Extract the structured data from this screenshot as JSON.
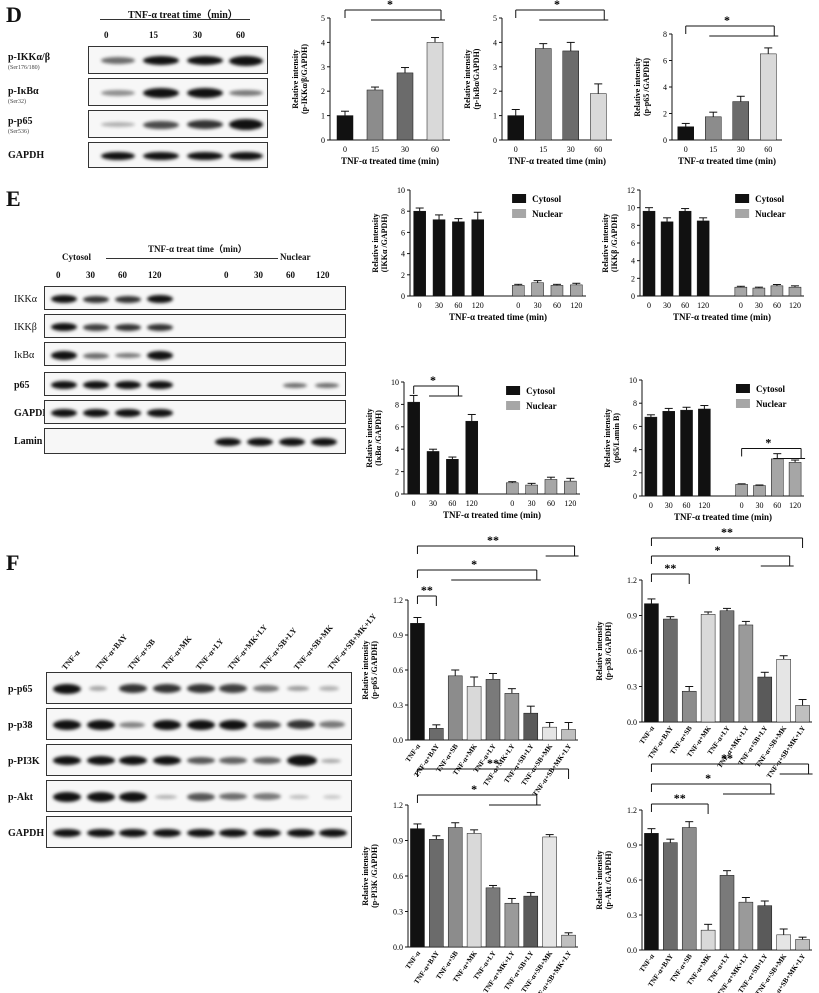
{
  "panels": {
    "D": "D",
    "E": "E",
    "F": "F"
  },
  "D": {
    "treat_header": "TNF-α treat time（min）",
    "times": [
      "0",
      "15",
      "30",
      "60"
    ],
    "blot_labels": [
      {
        "name": "p-IKKα/β",
        "sub": "(Ser176/180)"
      },
      {
        "name": "p-IκBα",
        "sub": "(Ser32)"
      },
      {
        "name": "p-p65",
        "sub": "(Ser536)"
      },
      {
        "name": "GAPDH",
        "sub": ""
      }
    ]
  },
  "E": {
    "treat_header": "TNF-α treat time（min）",
    "cytosol": "Cytosol",
    "nuclear": "Nuclear",
    "times": [
      "0",
      "30",
      "60",
      "120",
      "0",
      "30",
      "60",
      "120"
    ],
    "blot_labels": [
      "IKKα",
      "IKKβ",
      "IκBα",
      "p65",
      "GAPDH",
      "Lamin B"
    ]
  },
  "F": {
    "lanes": [
      "TNF-α",
      "TNF-α+BAY",
      "TNF-α+SB",
      "TNF-α+MK",
      "TNF-α+LY",
      "TNF-α+MK+LY",
      "TNF-α+SB+LY",
      "TNF-α+SB+MK",
      "TNF-α+SB+MK+LY"
    ],
    "blot_labels": [
      "p-p65",
      "p-p38",
      "p-PI3K",
      "p-Akt",
      "GAPDH"
    ]
  },
  "chart_data": [
    {
      "type": "bar",
      "id": "D1",
      "categories": [
        "0",
        "15",
        "30",
        "60"
      ],
      "values": [
        1.0,
        2.05,
        2.75,
        4.0
      ],
      "errors": [
        0.18,
        0.12,
        0.22,
        0.2
      ],
      "colors": [
        "#111111",
        "#8c8c8c",
        "#6b6b6b",
        "#d9d9d9"
      ],
      "ylim": [
        0,
        5
      ],
      "yticks": [
        "0",
        "1",
        "2",
        "3",
        "4",
        "5"
      ],
      "ylabel": "Relative intensity",
      "ylabel2": "(p-IKKα/β/GAPDH)",
      "xlabel": "TNF-α treated time (min)",
      "sig": "*"
    },
    {
      "type": "bar",
      "id": "D2",
      "categories": [
        "0",
        "15",
        "30",
        "60"
      ],
      "values": [
        1.0,
        3.75,
        3.65,
        1.9
      ],
      "errors": [
        0.25,
        0.2,
        0.35,
        0.4
      ],
      "colors": [
        "#111111",
        "#8c8c8c",
        "#6b6b6b",
        "#d9d9d9"
      ],
      "ylim": [
        0,
        5
      ],
      "yticks": [
        "0",
        "1",
        "2",
        "3",
        "4",
        "5"
      ],
      "ylabel": "Relative intensity",
      "ylabel2": "(p-IκBα/GAPDH)",
      "xlabel": "TNF-α treated time (min)",
      "sig": "*"
    },
    {
      "type": "bar",
      "id": "D3",
      "categories": [
        "0",
        "15",
        "30",
        "60"
      ],
      "values": [
        1.0,
        1.75,
        2.9,
        6.5
      ],
      "errors": [
        0.25,
        0.35,
        0.4,
        0.45
      ],
      "colors": [
        "#111111",
        "#8c8c8c",
        "#6b6b6b",
        "#d9d9d9"
      ],
      "ylim": [
        0,
        8
      ],
      "yticks": [
        "0",
        "2",
        "4",
        "6",
        "8"
      ],
      "ylabel": "Relative intensity",
      "ylabel2": "(p-p65 /GAPDH)",
      "xlabel": "TNF-α treated time (min)",
      "sig": "*"
    },
    {
      "type": "bar",
      "id": "E1",
      "categories": [
        "0",
        "30",
        "60",
        "120",
        "0",
        "30",
        "60",
        "120"
      ],
      "values": [
        8.0,
        7.2,
        7.0,
        7.2,
        1.0,
        1.25,
        1.0,
        1.05
      ],
      "errors": [
        0.3,
        0.45,
        0.3,
        0.7,
        0.1,
        0.2,
        0.1,
        0.15
      ],
      "groups": [
        "Cytosol",
        "Nuclear"
      ],
      "ylim": [
        0,
        10
      ],
      "yticks": [
        "0",
        "2",
        "4",
        "6",
        "8",
        "10"
      ],
      "ylabel": "Relative intensity",
      "ylabel2": "(IKKα /GAPDH)",
      "xlabel": "TNF-α treated time (min)",
      "legend": [
        "Cytosol",
        "Nuclear"
      ]
    },
    {
      "type": "bar",
      "id": "E2",
      "categories": [
        "0",
        "30",
        "60",
        "120",
        "0",
        "30",
        "60",
        "120"
      ],
      "values": [
        9.6,
        8.4,
        9.6,
        8.5,
        1.0,
        0.9,
        1.15,
        1.0
      ],
      "errors": [
        0.4,
        0.45,
        0.3,
        0.35,
        0.1,
        0.1,
        0.15,
        0.15
      ],
      "groups": [
        "Cytosol",
        "Nuclear"
      ],
      "ylim": [
        0,
        12
      ],
      "yticks": [
        "0",
        "2",
        "4",
        "6",
        "8",
        "10",
        "12"
      ],
      "ylabel": "Relative intensity",
      "ylabel2": "(IKKβ /GAPDH)",
      "xlabel": "TNF-α treated time (min)",
      "legend": [
        "Cytosol",
        "Nuclear"
      ]
    },
    {
      "type": "bar",
      "id": "E3",
      "categories": [
        "0",
        "30",
        "60",
        "120",
        "0",
        "30",
        "60",
        "120"
      ],
      "values": [
        8.2,
        3.8,
        3.1,
        6.5,
        1.0,
        0.8,
        1.3,
        1.15
      ],
      "errors": [
        0.6,
        0.2,
        0.2,
        0.6,
        0.1,
        0.15,
        0.2,
        0.25
      ],
      "groups": [
        "Cytosol",
        "Nuclear"
      ],
      "ylim": [
        0,
        10
      ],
      "yticks": [
        "0",
        "2",
        "4",
        "6",
        "8",
        "10"
      ],
      "ylabel": "Relative intensity",
      "ylabel2": "(IκBα /GAPDH)",
      "xlabel": "TNF-α treated time (min)",
      "legend": [
        "Cytosol",
        "Nuclear"
      ],
      "sig": "*"
    },
    {
      "type": "bar",
      "id": "E4",
      "categories": [
        "0",
        "30",
        "60",
        "120",
        "0",
        "30",
        "60",
        "120"
      ],
      "values": [
        6.8,
        7.3,
        7.4,
        7.5,
        1.0,
        0.9,
        3.2,
        2.9
      ],
      "errors": [
        0.2,
        0.25,
        0.25,
        0.3,
        0.05,
        0.05,
        0.45,
        0.2
      ],
      "groups": [
        "Cytosol",
        "Nuclear"
      ],
      "ylim": [
        0,
        10
      ],
      "yticks": [
        "0",
        "2",
        "4",
        "6",
        "8",
        "10"
      ],
      "ylabel": "Relative intensity",
      "ylabel2": "(p65/Lamin B)",
      "xlabel": "TNF-α treated time (min)",
      "legend": [
        "Cytosol",
        "Nuclear"
      ],
      "sig": "*"
    },
    {
      "type": "bar",
      "id": "F1",
      "categories": [
        "TNF-α",
        "TNF-α+BAY",
        "TNF-α+SB",
        "TNF-α+MK",
        "TNF-α+LY",
        "TNF-α+MK+LY",
        "TNF-α+SB+LY",
        "TNF-α+SB+MK",
        "TNF-α+SB+MK+LY"
      ],
      "values": [
        1.0,
        0.1,
        0.55,
        0.46,
        0.52,
        0.4,
        0.23,
        0.11,
        0.09
      ],
      "errors": [
        0.05,
        0.03,
        0.05,
        0.08,
        0.05,
        0.04,
        0.06,
        0.04,
        0.06
      ],
      "colors": [
        "#111111",
        "#6b6b6b",
        "#8c8c8c",
        "#d9d9d9",
        "#7a7a7a",
        "#9a9a9a",
        "#5a5a5a",
        "#e5e5e5",
        "#bfbfbf"
      ],
      "ylim": [
        0,
        1.2
      ],
      "yticks": [
        "0.0",
        "0.3",
        "0.6",
        "0.9",
        "1.2"
      ],
      "ylabel": "Relative intensity",
      "ylabel2": "(p-p65 /GAPDH)",
      "sig": [
        "**",
        "*",
        "**"
      ]
    },
    {
      "type": "bar",
      "id": "F2",
      "categories": [
        "TNF-α",
        "TNF-α+BAY",
        "TNF-α+SB",
        "TNF-α+MK",
        "TNF-α+LY",
        "TNF-α+MK+LY",
        "TNF-α+SB+LY",
        "TNF-α+SB+MK",
        "TNF-α+SB+MK+LY"
      ],
      "values": [
        1.0,
        0.87,
        0.26,
        0.91,
        0.94,
        0.82,
        0.38,
        0.53,
        0.14
      ],
      "errors": [
        0.04,
        0.02,
        0.04,
        0.02,
        0.02,
        0.03,
        0.04,
        0.03,
        0.05
      ],
      "colors": [
        "#111111",
        "#6b6b6b",
        "#8c8c8c",
        "#d9d9d9",
        "#7a7a7a",
        "#9a9a9a",
        "#5a5a5a",
        "#e5e5e5",
        "#bfbfbf"
      ],
      "ylim": [
        0,
        1.2
      ],
      "yticks": [
        "0.0",
        "0.3",
        "0.6",
        "0.9",
        "1.2"
      ],
      "ylabel": "Relative intensity",
      "ylabel2": "(p-p38 /GAPDH)",
      "sig": [
        "**",
        "*",
        "**"
      ]
    },
    {
      "type": "bar",
      "id": "F3",
      "categories": [
        "TNF-α",
        "TNF-α+BAY",
        "TNF-α+SB",
        "TNF-α+MK",
        "TNF-α+LY",
        "TNF-α+MK+LY",
        "TNF-α+SB+LY",
        "TNF-α+SB+MK",
        "TNF-α+SB+MK+LY"
      ],
      "values": [
        1.0,
        0.91,
        1.01,
        0.96,
        0.5,
        0.37,
        0.43,
        0.93,
        0.1
      ],
      "errors": [
        0.04,
        0.03,
        0.04,
        0.03,
        0.02,
        0.04,
        0.03,
        0.02,
        0.02
      ],
      "colors": [
        "#111111",
        "#6b6b6b",
        "#8c8c8c",
        "#d9d9d9",
        "#7a7a7a",
        "#9a9a9a",
        "#5a5a5a",
        "#e5e5e5",
        "#bfbfbf"
      ],
      "ylim": [
        0,
        1.2
      ],
      "yticks": [
        "0.0",
        "0.3",
        "0.6",
        "0.9",
        "1.2"
      ],
      "ylabel": "Relative intensity",
      "ylabel2": "(p-PI3K /GAPDH)",
      "sig": [
        "*",
        "**"
      ]
    },
    {
      "type": "bar",
      "id": "F4",
      "categories": [
        "TNF-α",
        "TNF-α+BAY",
        "TNF-α+SB",
        "TNF-α+MK",
        "TNF-α+LY",
        "TNF-α+MK+LY",
        "TNF-α+SB+LY",
        "TNF-α+SB+MK",
        "TNF-α+SB+MK+LY"
      ],
      "values": [
        1.0,
        0.92,
        1.05,
        0.17,
        0.64,
        0.41,
        0.38,
        0.13,
        0.09
      ],
      "errors": [
        0.04,
        0.03,
        0.05,
        0.05,
        0.04,
        0.04,
        0.04,
        0.05,
        0.02
      ],
      "colors": [
        "#111111",
        "#6b6b6b",
        "#8c8c8c",
        "#d9d9d9",
        "#7a7a7a",
        "#9a9a9a",
        "#5a5a5a",
        "#e5e5e5",
        "#bfbfbf"
      ],
      "ylim": [
        0,
        1.2
      ],
      "yticks": [
        "0.0",
        "0.3",
        "0.6",
        "0.9",
        "1.2"
      ],
      "ylabel": "Relative intensity",
      "ylabel2": "(p-Akt /GAPDH)",
      "sig": [
        "**",
        "*",
        "**"
      ]
    }
  ]
}
